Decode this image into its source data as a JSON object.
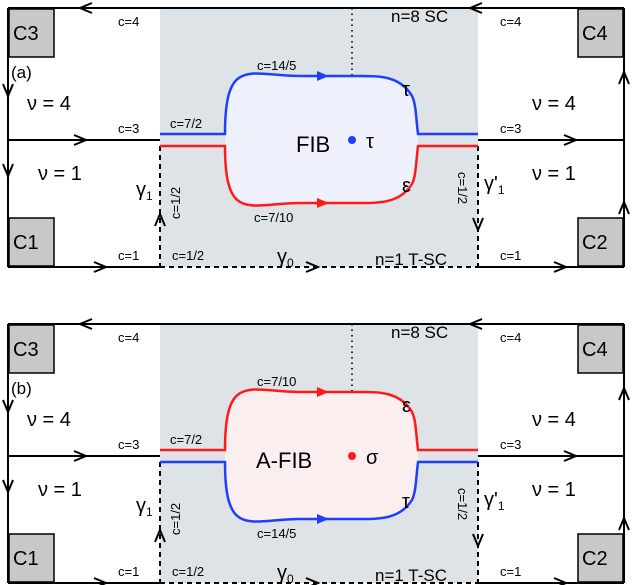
{
  "panels": [
    {
      "tag": "(a)",
      "top_sc": "n=8 SC",
      "bottom_sc": "n=1 T-SC",
      "corners": {
        "tl": "C3",
        "tr": "C4",
        "bl": "C1",
        "br": "C2"
      },
      "nu_upper": "ν = 4",
      "nu_lower": "ν = 1",
      "c_top_left": "c=4",
      "c_top_right": "c=4",
      "c_mid_left": "c=3",
      "c_mid_right": "c=3",
      "c_bot_left": "c=1",
      "c_bot_right": "c=1",
      "c_bot_inner": "c=1/2",
      "c_vert_left": "c=1/2",
      "c_vert_right": "c=1/2",
      "c_neck": "c=7/2",
      "c_upper_arc": "c=14/5",
      "c_lower_arc": "c=7/10",
      "upper_arc_color": "#1f3fff",
      "lower_arc_color": "#ff1a1a",
      "island_fill": "#eef1fb",
      "island_label": "FIB",
      "core_label": "τ",
      "core_color": "#1f3fff",
      "upper_anyon": "τ",
      "lower_anyon": "ε",
      "gamma_left": "γ",
      "gamma_left_sub": "1",
      "gamma_right": "γ'",
      "gamma_right_sub": "1",
      "gamma_bottom": "γ",
      "gamma_bottom_sub": "0"
    },
    {
      "tag": "(b)",
      "top_sc": "n=8 SC",
      "bottom_sc": "n=1 T-SC",
      "corners": {
        "tl": "C3",
        "tr": "C4",
        "bl": "C1",
        "br": "C2"
      },
      "nu_upper": "ν = 4",
      "nu_lower": "ν = 1",
      "c_top_left": "c=4",
      "c_top_right": "c=4",
      "c_mid_left": "c=3",
      "c_mid_right": "c=3",
      "c_bot_left": "c=1",
      "c_bot_right": "c=1",
      "c_bot_inner": "c=1/2",
      "c_vert_left": "c=1/2",
      "c_vert_right": "c=1/2",
      "c_neck": "c=7/2",
      "c_upper_arc": "c=7/10",
      "c_lower_arc": "c=14/5",
      "upper_arc_color": "#ff1a1a",
      "lower_arc_color": "#1f3fff",
      "island_fill": "#fbeeee",
      "island_label": "A-FIB",
      "core_label": "σ",
      "core_color": "#ff1a1a",
      "upper_anyon": "ε",
      "lower_anyon": "τ",
      "gamma_left": "γ",
      "gamma_left_sub": "1",
      "gamma_right": "γ'",
      "gamma_right_sub": "1",
      "gamma_bottom": "γ",
      "gamma_bottom_sub": "0"
    }
  ]
}
